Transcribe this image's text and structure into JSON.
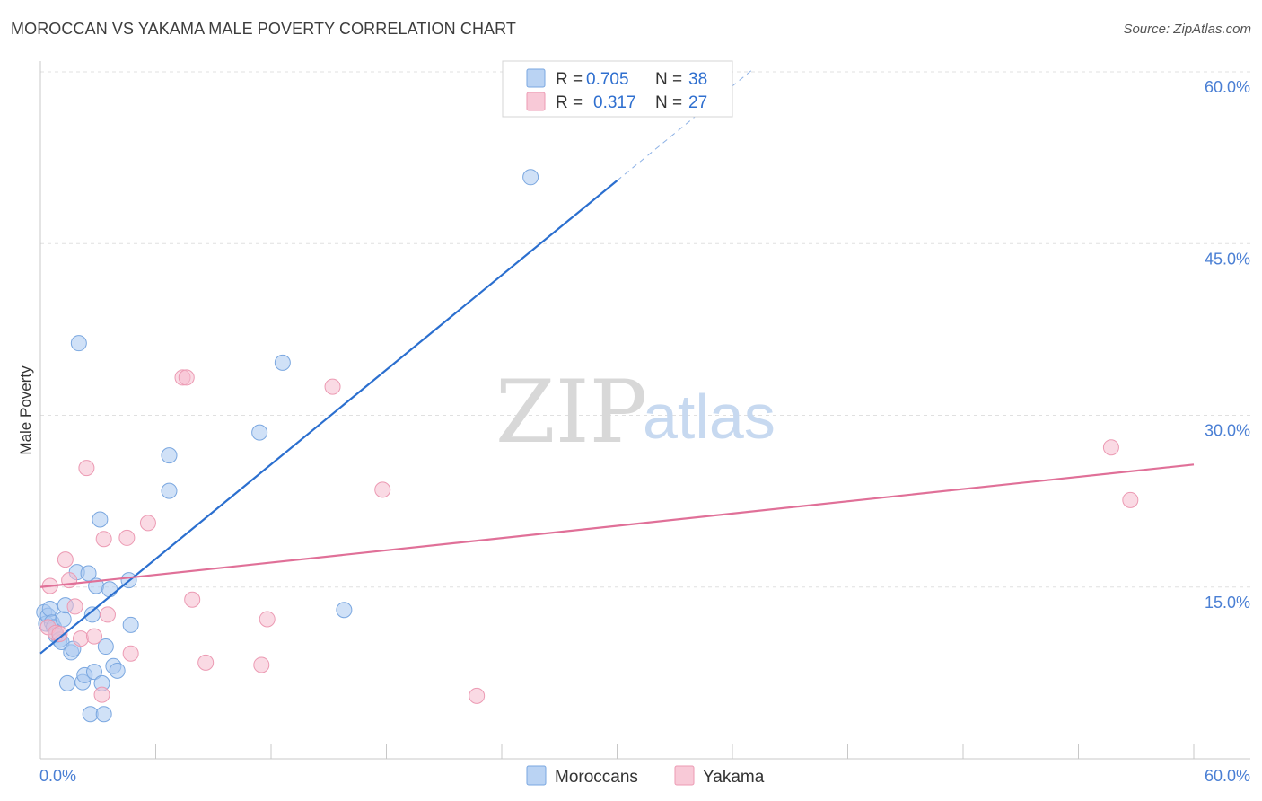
{
  "header": {
    "title": "MOROCCAN VS YAKAMA MALE POVERTY CORRELATION CHART",
    "source": "Source: ZipAtlas.com"
  },
  "watermark": {
    "zip": "ZIP",
    "atlas": "atlas"
  },
  "legend": {
    "r_label": "R =",
    "n_label": "N =",
    "entries": [
      {
        "series": "Moroccans",
        "r": "0.705",
        "n": "38"
      },
      {
        "series": "Yakama",
        "r": "0.317",
        "n": "27"
      }
    ]
  },
  "colors": {
    "moroccans_fill": "#a9c8f0",
    "moroccans_stroke": "#7aa7e0",
    "moroccans_line": "#2b6fcf",
    "yakama_fill": "#f6bccd",
    "yakama_stroke": "#ec9ab3",
    "yakama_line": "#e07098",
    "grid": "#e0e0e0",
    "tick_text": "#4a7fd4"
  },
  "chart_data": {
    "type": "scatter",
    "title": "MOROCCAN VS YAKAMA MALE POVERTY CORRELATION CHART",
    "xlabel": "",
    "ylabel": "Male Poverty",
    "xlim": [
      0,
      60
    ],
    "ylim": [
      0,
      60
    ],
    "x_tick_labels": [
      "0.0%",
      "60.0%"
    ],
    "y_ticks": [
      15,
      30,
      45,
      60
    ],
    "y_tick_labels": [
      "15.0%",
      "30.0%",
      "45.0%",
      "60.0%"
    ],
    "grid": true,
    "legend_position": "top-center",
    "series": [
      {
        "name": "Moroccans",
        "r": 0.705,
        "n": 38,
        "trend": {
          "x0": 0.0,
          "y0": 9.2,
          "x1": 30.0,
          "y1": 50.5,
          "dash_to_x": 37.0
        },
        "points": [
          [
            0.2,
            12.8
          ],
          [
            0.3,
            11.8
          ],
          [
            0.4,
            12.5
          ],
          [
            0.5,
            13.1
          ],
          [
            0.6,
            11.9
          ],
          [
            0.7,
            11.5
          ],
          [
            0.8,
            10.8
          ],
          [
            1.0,
            10.4
          ],
          [
            1.1,
            10.2
          ],
          [
            1.2,
            12.2
          ],
          [
            1.3,
            13.4
          ],
          [
            1.4,
            6.6
          ],
          [
            1.6,
            9.3
          ],
          [
            1.7,
            9.6
          ],
          [
            1.9,
            16.3
          ],
          [
            2.0,
            36.3
          ],
          [
            2.2,
            6.7
          ],
          [
            2.3,
            7.3
          ],
          [
            2.5,
            16.2
          ],
          [
            2.6,
            3.9
          ],
          [
            2.7,
            12.6
          ],
          [
            2.8,
            7.6
          ],
          [
            2.9,
            15.1
          ],
          [
            3.1,
            20.9
          ],
          [
            3.2,
            6.6
          ],
          [
            3.3,
            3.9
          ],
          [
            3.4,
            9.8
          ],
          [
            3.6,
            14.8
          ],
          [
            3.8,
            8.1
          ],
          [
            4.0,
            7.7
          ],
          [
            4.6,
            15.6
          ],
          [
            4.7,
            11.7
          ],
          [
            6.7,
            23.4
          ],
          [
            6.7,
            26.5
          ],
          [
            11.4,
            28.5
          ],
          [
            12.6,
            34.6
          ],
          [
            15.8,
            13.0
          ],
          [
            25.5,
            50.8
          ]
        ]
      },
      {
        "name": "Yakama",
        "r": 0.317,
        "n": 27,
        "trend": {
          "x0": 0.0,
          "y0": 15.0,
          "x1": 60.0,
          "y1": 25.7
        },
        "points": [
          [
            0.4,
            11.5
          ],
          [
            0.5,
            15.1
          ],
          [
            0.8,
            11.0
          ],
          [
            1.0,
            10.9
          ],
          [
            1.3,
            17.4
          ],
          [
            1.5,
            15.6
          ],
          [
            1.8,
            13.3
          ],
          [
            2.1,
            10.5
          ],
          [
            2.4,
            25.4
          ],
          [
            2.8,
            10.7
          ],
          [
            3.2,
            5.6
          ],
          [
            3.3,
            19.2
          ],
          [
            3.5,
            12.6
          ],
          [
            4.5,
            19.3
          ],
          [
            4.7,
            9.2
          ],
          [
            5.6,
            20.6
          ],
          [
            7.4,
            33.3
          ],
          [
            7.6,
            33.3
          ],
          [
            7.9,
            13.9
          ],
          [
            8.6,
            8.4
          ],
          [
            11.5,
            8.2
          ],
          [
            11.8,
            12.2
          ],
          [
            15.2,
            32.5
          ],
          [
            17.8,
            23.5
          ],
          [
            22.7,
            5.5
          ],
          [
            55.7,
            27.2
          ],
          [
            56.7,
            22.6
          ]
        ]
      }
    ]
  }
}
